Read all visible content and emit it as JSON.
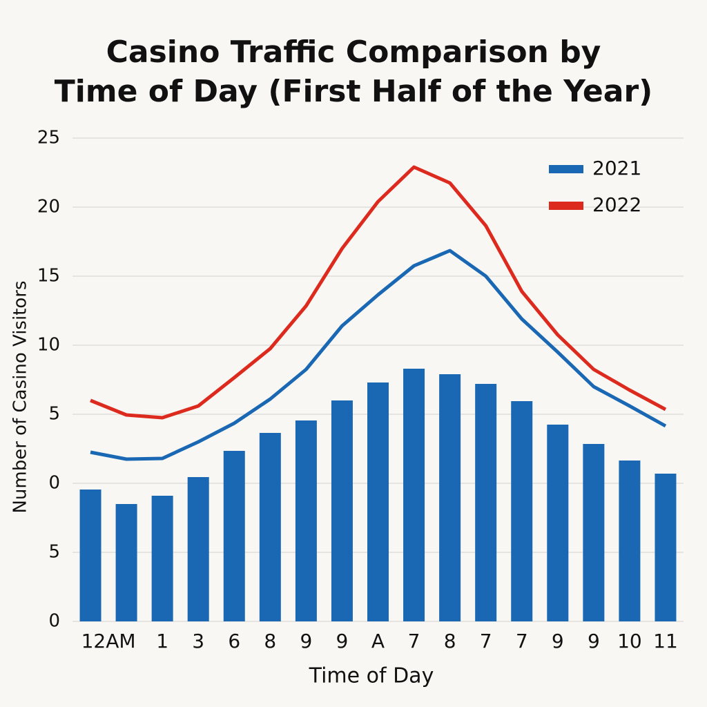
{
  "chart_data": {
    "type": "bar_line",
    "title": [
      "Casino Traffic Comparison by",
      "Time of Day (First Half of the Year)"
    ],
    "x_label": "Time of Day",
    "y_label": "Number of Casino Visitors",
    "categories": [
      "12AM",
      null,
      "1",
      "3",
      "6",
      "8",
      "9",
      "9",
      "A",
      "7",
      "8",
      "7",
      "7",
      "9",
      "9",
      "10",
      "11"
    ],
    "bars": {
      "color": "#1a68b3",
      "values": [
        -0.45,
        -1.5,
        -0.9,
        0.45,
        2.35,
        3.65,
        4.55,
        6.0,
        7.3,
        8.3,
        7.9,
        7.2,
        5.95,
        4.25,
        2.85,
        1.65,
        0.7
      ]
    },
    "series": [
      {
        "name": "2021",
        "color": "#1a68b3",
        "values": [
          2.25,
          1.75,
          1.8,
          3.0,
          4.35,
          6.1,
          8.25,
          11.4,
          13.65,
          15.75,
          16.85,
          15.0,
          11.9,
          9.5,
          7.0,
          5.6,
          4.15
        ]
      },
      {
        "name": "2022",
        "color": "#dd2a1e",
        "values": [
          6.0,
          4.95,
          4.75,
          5.6,
          7.65,
          9.75,
          12.85,
          17.0,
          20.4,
          22.9,
          21.75,
          18.65,
          13.9,
          10.75,
          8.25,
          6.75,
          5.35
        ]
      }
    ],
    "ylim": [
      -10,
      25
    ],
    "yticks": [
      {
        "value": -10,
        "label": "0"
      },
      {
        "value": -5,
        "label": "5"
      },
      0,
      5,
      10,
      15,
      20,
      25
    ],
    "grid": true,
    "legend": "upper right"
  }
}
